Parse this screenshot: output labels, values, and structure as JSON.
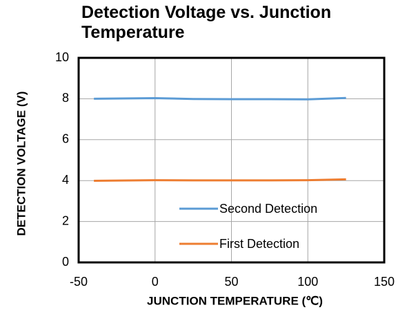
{
  "chart_data": {
    "type": "line",
    "title": "Detection Voltage vs. Junction Temperature",
    "x_label": "JUNCTION  TEMPERATURE (℃)",
    "y_label": "DETECTION  VOLTAGE (V)",
    "x": [
      -40,
      0,
      25,
      50,
      75,
      100,
      125
    ],
    "series": [
      {
        "name": "Second Detection",
        "color": "#5b9bd5",
        "values": [
          8.0,
          8.03,
          7.99,
          7.98,
          7.98,
          7.97,
          8.04
        ]
      },
      {
        "name": "First Detection",
        "color": "#ed7d31",
        "values": [
          3.99,
          4.02,
          4.01,
          4.01,
          4.01,
          4.02,
          4.06
        ]
      }
    ],
    "xlim": [
      -50,
      150
    ],
    "xticks": [
      -50,
      0,
      50,
      100,
      150
    ],
    "ylim": [
      0,
      10
    ],
    "yticks": [
      0,
      2,
      4,
      6,
      8,
      10
    ],
    "grid": true,
    "legend": "lower right"
  }
}
